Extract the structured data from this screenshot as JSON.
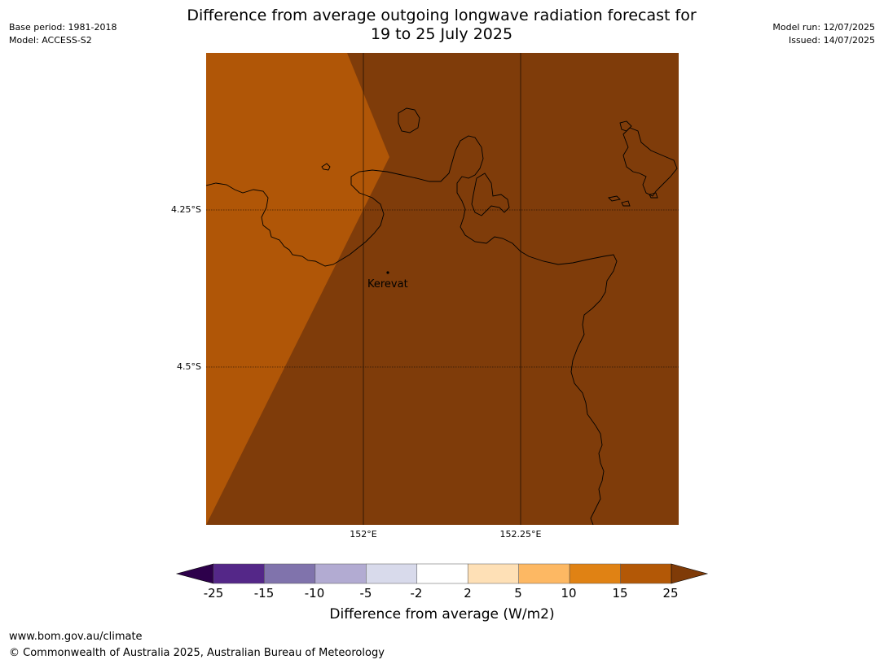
{
  "header": {
    "base_period": "Base period: 1981-2018",
    "model": "Model: ACCESS-S2",
    "model_run": "Model run: 12/07/2025",
    "issued": "Issued: 14/07/2025",
    "title_line1": "Difference from average outgoing longwave radiation forecast for",
    "title_line2": "19 to 25 July 2025"
  },
  "map": {
    "lat_labels": [
      "4.25°S",
      "4.5°S"
    ],
    "lon_labels": [
      "152°E",
      "152.25°E"
    ],
    "place_label": "Kerevat",
    "region_colors": {
      "band_10_15": "#b05607",
      "band_15_25": "#7f3c0a"
    }
  },
  "colorbar": {
    "title": "Difference from average (W/m2)",
    "ticks": [
      "-25",
      "-15",
      "-10",
      "-5",
      "-2",
      "2",
      "5",
      "10",
      "15",
      "25"
    ],
    "colors": [
      "#542788",
      "#8073ac",
      "#b2abd2",
      "#d8daeb",
      "#ffffff",
      "#fee0b6",
      "#fdb863",
      "#e08214",
      "#b35806"
    ],
    "under_color": "#2d004b",
    "over_color": "#7f3b08"
  },
  "footer": {
    "url": "www.bom.gov.au/climate",
    "copyright": "© Commonwealth of Australia 2025, Australian Bureau of Meteorology"
  }
}
